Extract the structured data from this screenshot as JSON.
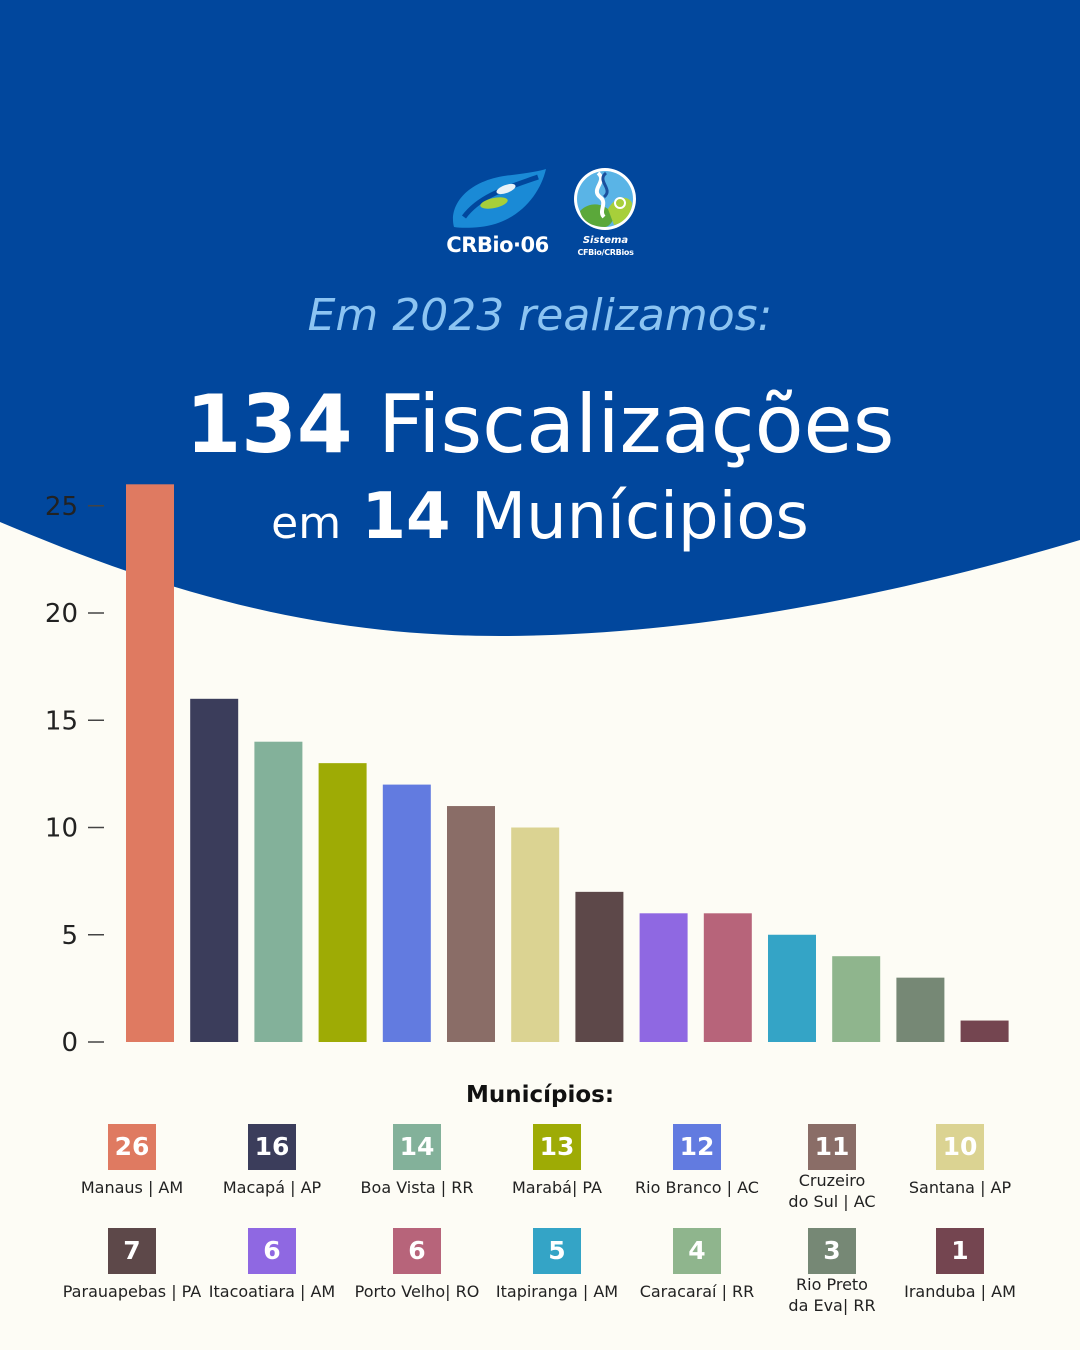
{
  "header": {
    "logo_crbio_text": "CRBio·06",
    "logo_sistema_line1": "Sistema",
    "logo_sistema_line2": "CFBio/CRBios",
    "subtitle": "Em 2023 realizamos:",
    "headline_number": "134",
    "headline_text": "Fiscalizações",
    "headline2_prefix": "em",
    "headline2_number": "14",
    "headline2_text": "Munícipios"
  },
  "colors": {
    "header_blue": "#01479d",
    "background": "#fdfcf5",
    "subtitle": "#8cc4f2"
  },
  "chart_data": {
    "type": "bar",
    "categories": [
      "Manaus | AM",
      "Macapá | AP",
      "Boa Vista | RR",
      "Marabá| PA",
      "Rio Branco | AC",
      "Cruzeiro\ndo Sul | AC",
      "Santana | AP",
      "Parauapebas | PA",
      "Itacoatiara | AM",
      "Porto Velho| RO",
      "Itapiranga | AM",
      "Caracaraí | RR",
      "Rio Preto\nda Eva| RR",
      "Iranduba | AM"
    ],
    "values": [
      26,
      16,
      14,
      13,
      12,
      11,
      10,
      7,
      6,
      6,
      5,
      4,
      3,
      1
    ],
    "colors": [
      "#df7a61",
      "#3b3d5b",
      "#83b19a",
      "#9eab05",
      "#627be0",
      "#8a6d67",
      "#dbd392",
      "#5d4849",
      "#8f68e2",
      "#b7647a",
      "#34a4c6",
      "#8fb58d",
      "#768875",
      "#744550"
    ],
    "yticks": [
      0,
      5,
      10,
      15,
      20,
      25
    ],
    "ylim": [
      0,
      26
    ],
    "grid": false,
    "legend_title": "Municípios:"
  }
}
